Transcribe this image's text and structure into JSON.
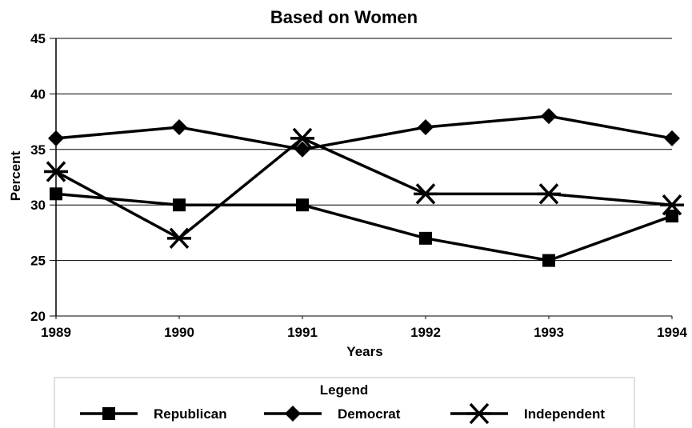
{
  "chart_data": {
    "type": "line",
    "title": "Based on Women",
    "xlabel": "Years",
    "ylabel": "Percent",
    "x": [
      "1989",
      "1990",
      "1991",
      "1992",
      "1993",
      "1994"
    ],
    "ylim": [
      20,
      45
    ],
    "yticks": [
      20,
      25,
      30,
      35,
      40,
      45
    ],
    "grid": true,
    "legend_placement": "bottom",
    "legend_title": "Legend",
    "series": [
      {
        "name": "Republican",
        "marker": "square",
        "values": [
          31,
          30,
          30,
          27,
          25,
          29
        ]
      },
      {
        "name": "Democrat",
        "marker": "diamond",
        "values": [
          36,
          37,
          35,
          37,
          38,
          36
        ]
      },
      {
        "name": "Independent",
        "marker": "star",
        "values": [
          33,
          27,
          36,
          31,
          31,
          30
        ]
      }
    ],
    "colors": {
      "line": "#000000",
      "grid": "#000000",
      "legend_border": "#c0c0c0"
    }
  }
}
